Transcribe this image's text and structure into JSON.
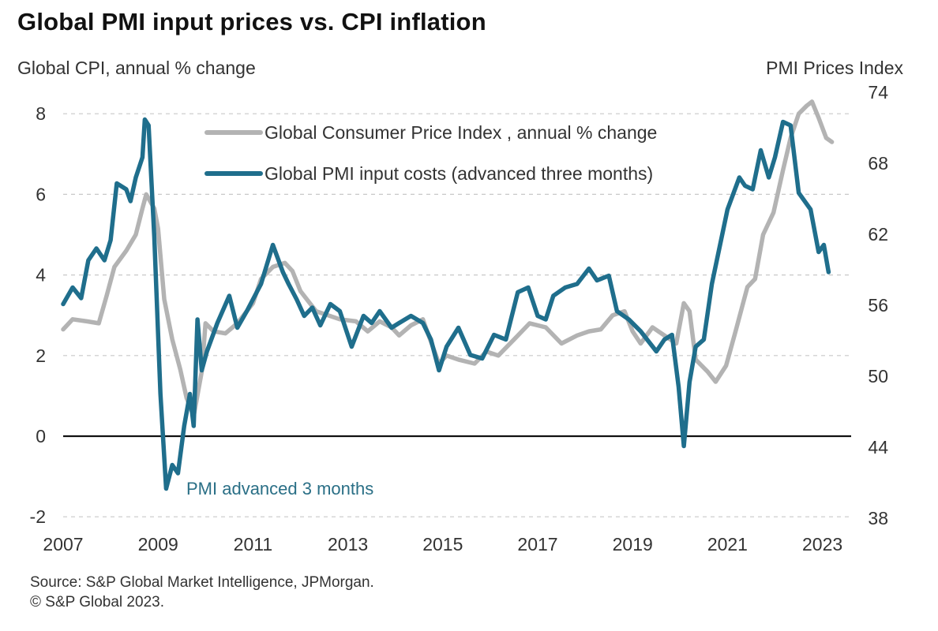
{
  "chart_data": {
    "type": "line",
    "title": "Global PMI input prices vs. CPI inflation",
    "ylabel_left": "Global  CPI, annual  % change",
    "ylabel_right": "PMI Prices Index",
    "xlabel": "",
    "x_ticks": [
      "2007",
      "2009",
      "2011",
      "2013",
      "2015",
      "2017",
      "2019",
      "2021",
      "2023"
    ],
    "x_range": [
      2007,
      2023.75
    ],
    "y_left_ticks": [
      "8",
      "6",
      "4",
      "2",
      "0",
      "-2"
    ],
    "y_left_range": [
      -2,
      8
    ],
    "y_right_ticks": [
      "74",
      "68",
      "62",
      "56",
      "50",
      "44",
      "38"
    ],
    "y_right_range": [
      38,
      74
    ],
    "grid": true,
    "legend_position": "top-center",
    "annotation": "PMI advanced  3 months",
    "source": "Source: S&P Global Market Intelligence, JPMorgan.",
    "copyright": "© S&P Global 2023.",
    "series": [
      {
        "name": "Global Consumer Price Index , annual % change",
        "axis": "left",
        "color": "#b3b3b3",
        "points": [
          [
            2007.0,
            2.65
          ],
          [
            2007.2,
            2.9
          ],
          [
            2007.5,
            2.85
          ],
          [
            2007.75,
            2.8
          ],
          [
            2007.92,
            3.5
          ],
          [
            2008.08,
            4.2
          ],
          [
            2008.33,
            4.6
          ],
          [
            2008.53,
            5.0
          ],
          [
            2008.67,
            5.65
          ],
          [
            2008.75,
            6.0
          ],
          [
            2008.92,
            5.65
          ],
          [
            2009.0,
            5.15
          ],
          [
            2009.13,
            3.4
          ],
          [
            2009.3,
            2.4
          ],
          [
            2009.47,
            1.65
          ],
          [
            2009.6,
            0.95
          ],
          [
            2009.75,
            0.5
          ],
          [
            2009.92,
            1.6
          ],
          [
            2010.0,
            2.8
          ],
          [
            2010.17,
            2.6
          ],
          [
            2010.42,
            2.55
          ],
          [
            2010.67,
            2.8
          ],
          [
            2011.0,
            3.3
          ],
          [
            2011.17,
            3.9
          ],
          [
            2011.42,
            4.2
          ],
          [
            2011.67,
            4.3
          ],
          [
            2011.83,
            4.1
          ],
          [
            2012.0,
            3.6
          ],
          [
            2012.33,
            3.1
          ],
          [
            2012.58,
            3.0
          ],
          [
            2012.83,
            2.9
          ],
          [
            2013.17,
            2.85
          ],
          [
            2013.42,
            2.6
          ],
          [
            2013.67,
            2.85
          ],
          [
            2013.92,
            2.7
          ],
          [
            2014.08,
            2.5
          ],
          [
            2014.33,
            2.75
          ],
          [
            2014.58,
            2.9
          ],
          [
            2014.67,
            2.6
          ],
          [
            2014.92,
            1.8
          ],
          [
            2015.08,
            2.0
          ],
          [
            2015.33,
            1.9
          ],
          [
            2015.67,
            1.8
          ],
          [
            2015.92,
            2.1
          ],
          [
            2016.17,
            2.0
          ],
          [
            2016.5,
            2.4
          ],
          [
            2016.83,
            2.8
          ],
          [
            2017.17,
            2.7
          ],
          [
            2017.5,
            2.3
          ],
          [
            2017.83,
            2.5
          ],
          [
            2018.08,
            2.6
          ],
          [
            2018.33,
            2.65
          ],
          [
            2018.58,
            3.0
          ],
          [
            2018.83,
            3.1
          ],
          [
            2019.0,
            2.6
          ],
          [
            2019.17,
            2.3
          ],
          [
            2019.42,
            2.7
          ],
          [
            2019.67,
            2.5
          ],
          [
            2019.92,
            2.3
          ],
          [
            2020.08,
            3.3
          ],
          [
            2020.2,
            3.1
          ],
          [
            2020.33,
            1.9
          ],
          [
            2020.58,
            1.6
          ],
          [
            2020.75,
            1.35
          ],
          [
            2020.97,
            1.75
          ],
          [
            2021.17,
            2.6
          ],
          [
            2021.42,
            3.7
          ],
          [
            2021.58,
            3.9
          ],
          [
            2021.75,
            5.0
          ],
          [
            2021.97,
            5.55
          ],
          [
            2022.17,
            6.6
          ],
          [
            2022.33,
            7.4
          ],
          [
            2022.5,
            8.0
          ],
          [
            2022.67,
            8.2
          ],
          [
            2022.78,
            8.3
          ],
          [
            2022.92,
            7.9
          ],
          [
            2023.08,
            7.4
          ],
          [
            2023.2,
            7.3
          ]
        ]
      },
      {
        "name": "Global PMI input costs (advanced three months)",
        "axis": "right",
        "color": "#1f6e8c",
        "points": [
          [
            2007.0,
            56.1
          ],
          [
            2007.2,
            57.5
          ],
          [
            2007.38,
            56.6
          ],
          [
            2007.53,
            59.8
          ],
          [
            2007.7,
            60.8
          ],
          [
            2007.87,
            59.8
          ],
          [
            2008.0,
            61.5
          ],
          [
            2008.13,
            66.3
          ],
          [
            2008.33,
            65.8
          ],
          [
            2008.42,
            64.8
          ],
          [
            2008.53,
            66.8
          ],
          [
            2008.67,
            68.5
          ],
          [
            2008.72,
            71.7
          ],
          [
            2008.8,
            71.2
          ],
          [
            2008.92,
            61.8
          ],
          [
            2009.05,
            48.5
          ],
          [
            2009.17,
            40.5
          ],
          [
            2009.3,
            42.5
          ],
          [
            2009.42,
            41.8
          ],
          [
            2009.55,
            45.8
          ],
          [
            2009.67,
            48.5
          ],
          [
            2009.75,
            45.8
          ],
          [
            2009.83,
            54.8
          ],
          [
            2009.92,
            50.5
          ],
          [
            2010.03,
            52.1
          ],
          [
            2010.25,
            54.5
          ],
          [
            2010.5,
            56.8
          ],
          [
            2010.67,
            54.1
          ],
          [
            2010.87,
            55.5
          ],
          [
            2011.17,
            57.8
          ],
          [
            2011.42,
            61.1
          ],
          [
            2011.63,
            58.8
          ],
          [
            2011.75,
            57.8
          ],
          [
            2011.92,
            56.5
          ],
          [
            2012.08,
            55.1
          ],
          [
            2012.25,
            55.8
          ],
          [
            2012.42,
            54.3
          ],
          [
            2012.63,
            56.1
          ],
          [
            2012.83,
            55.5
          ],
          [
            2013.08,
            52.5
          ],
          [
            2013.33,
            55.1
          ],
          [
            2013.5,
            54.5
          ],
          [
            2013.67,
            55.5
          ],
          [
            2013.92,
            54.1
          ],
          [
            2014.08,
            54.5
          ],
          [
            2014.33,
            55.1
          ],
          [
            2014.58,
            54.5
          ],
          [
            2014.75,
            53.1
          ],
          [
            2014.92,
            50.5
          ],
          [
            2015.08,
            52.5
          ],
          [
            2015.33,
            54.1
          ],
          [
            2015.58,
            51.8
          ],
          [
            2015.83,
            51.5
          ],
          [
            2016.08,
            53.5
          ],
          [
            2016.33,
            53.1
          ],
          [
            2016.58,
            57.1
          ],
          [
            2016.8,
            57.5
          ],
          [
            2017.0,
            55.1
          ],
          [
            2017.17,
            54.8
          ],
          [
            2017.33,
            56.8
          ],
          [
            2017.58,
            57.5
          ],
          [
            2017.83,
            57.8
          ],
          [
            2018.08,
            59.1
          ],
          [
            2018.25,
            58.1
          ],
          [
            2018.5,
            58.5
          ],
          [
            2018.67,
            55.5
          ],
          [
            2018.92,
            54.8
          ],
          [
            2019.17,
            53.8
          ],
          [
            2019.5,
            52.1
          ],
          [
            2019.67,
            53.1
          ],
          [
            2019.83,
            53.5
          ],
          [
            2019.97,
            49.1
          ],
          [
            2020.08,
            44.1
          ],
          [
            2020.2,
            49.5
          ],
          [
            2020.33,
            52.5
          ],
          [
            2020.5,
            53.1
          ],
          [
            2020.67,
            57.8
          ],
          [
            2021.0,
            64.1
          ],
          [
            2021.25,
            66.8
          ],
          [
            2021.37,
            66.1
          ],
          [
            2021.53,
            65.8
          ],
          [
            2021.7,
            69.1
          ],
          [
            2021.87,
            66.8
          ],
          [
            2022.0,
            68.5
          ],
          [
            2022.17,
            71.5
          ],
          [
            2022.33,
            71.2
          ],
          [
            2022.5,
            65.5
          ],
          [
            2022.75,
            64.1
          ],
          [
            2022.92,
            60.5
          ],
          [
            2023.03,
            61.1
          ],
          [
            2023.13,
            58.8
          ]
        ]
      }
    ]
  }
}
